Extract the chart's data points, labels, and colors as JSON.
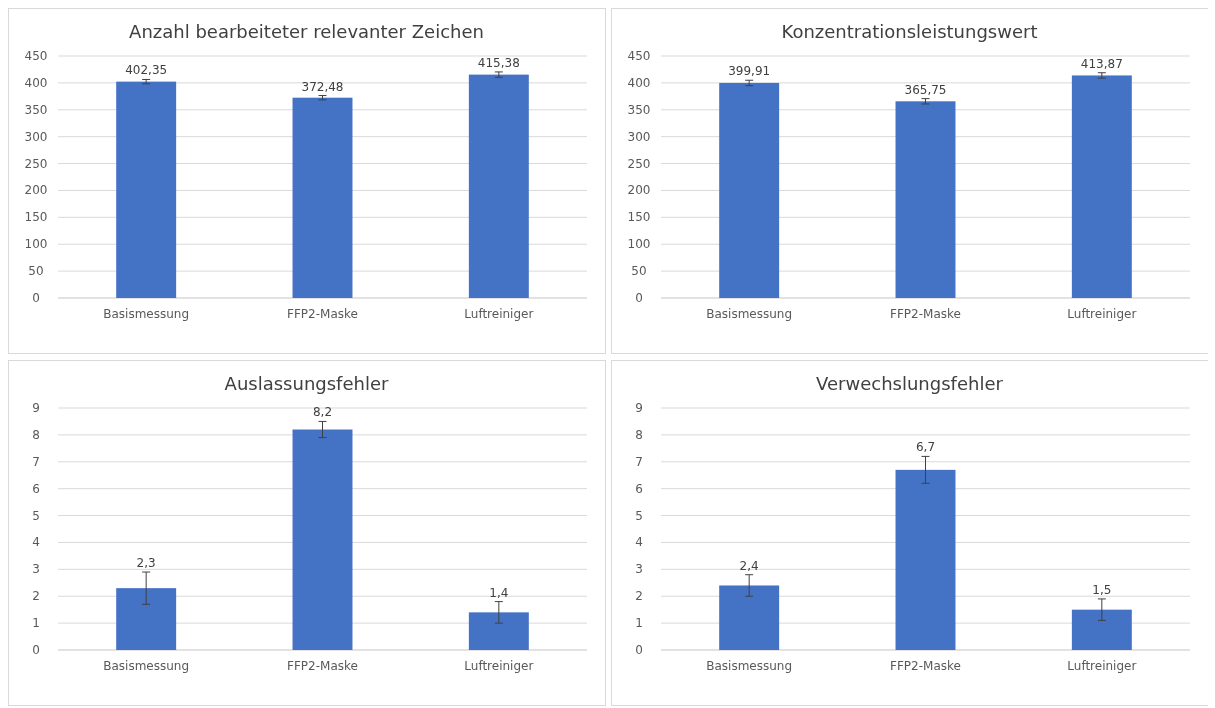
{
  "chart_data": [
    {
      "type": "bar",
      "title": "Anzahl bearbeiteter relevanter Zeichen",
      "categories": [
        "Basismessung",
        "FFP2-Maske",
        "Luftreiniger"
      ],
      "values": [
        402.35,
        372.48,
        415.38
      ],
      "errors": [
        4,
        4,
        5
      ],
      "value_labels": [
        "402,35",
        "372,48",
        "415,38"
      ],
      "color": "#4472c4",
      "ylim": [
        0,
        450
      ],
      "yticks": [
        0,
        50,
        100,
        150,
        200,
        250,
        300,
        350,
        400,
        450
      ],
      "grid": "y"
    },
    {
      "type": "bar",
      "title": "Konzentrationsleistungswert",
      "categories": [
        "Basismessung",
        "FFP2-Maske",
        "Luftreiniger"
      ],
      "values": [
        399.91,
        365.75,
        413.87
      ],
      "errors": [
        5,
        5,
        5
      ],
      "value_labels": [
        "399,91",
        "365,75",
        "413,87"
      ],
      "color": "#4472c4",
      "ylim": [
        0,
        450
      ],
      "yticks": [
        0,
        50,
        100,
        150,
        200,
        250,
        300,
        350,
        400,
        450
      ],
      "grid": "y"
    },
    {
      "type": "bar",
      "title": "Auslassungsfehler",
      "categories": [
        "Basismessung",
        "FFP2-Maske",
        "Luftreiniger"
      ],
      "values": [
        2.3,
        8.2,
        1.4
      ],
      "errors": [
        0.6,
        0.3,
        0.4
      ],
      "value_labels": [
        "2,3",
        "8,2",
        "1,4"
      ],
      "color": "#4472c4",
      "ylim": [
        0,
        9
      ],
      "yticks": [
        0,
        1,
        2,
        3,
        4,
        5,
        6,
        7,
        8,
        9
      ],
      "grid": "y"
    },
    {
      "type": "bar",
      "title": "Verwechslungsfehler",
      "categories": [
        "Basismessung",
        "FFP2-Maske",
        "Luftreiniger"
      ],
      "values": [
        2.4,
        6.7,
        1.5
      ],
      "errors": [
        0.4,
        0.5,
        0.4
      ],
      "value_labels": [
        "2,4",
        "6,7",
        "1,5"
      ],
      "color": "#4472c4",
      "ylim": [
        0,
        9
      ],
      "yticks": [
        0,
        1,
        2,
        3,
        4,
        5,
        6,
        7,
        8,
        9
      ],
      "grid": "y"
    }
  ]
}
